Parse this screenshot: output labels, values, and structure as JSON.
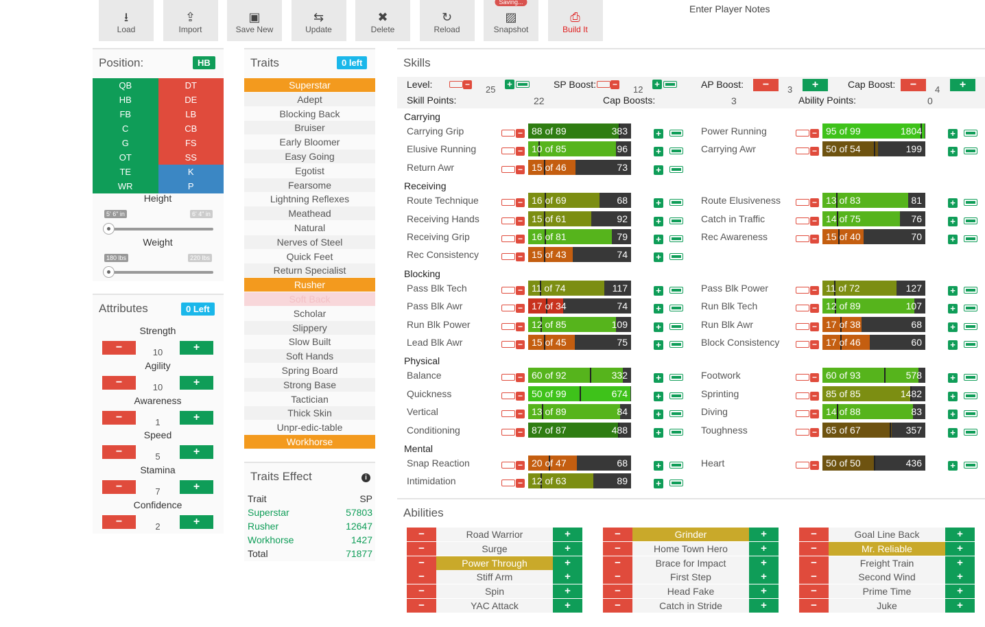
{
  "toolbar": {
    "buttons": [
      {
        "label": "Load",
        "icon": "download-icon"
      },
      {
        "label": "Import",
        "icon": "share-icon"
      },
      {
        "label": "Save New",
        "icon": "save-icon"
      },
      {
        "label": "Update",
        "icon": "sync-icon"
      },
      {
        "label": "Delete",
        "icon": "close-icon"
      },
      {
        "label": "Reload",
        "icon": "reload-icon"
      },
      {
        "label": "Snapshot",
        "icon": "image-icon",
        "badge": "Saving..."
      },
      {
        "label": "Build It",
        "icon": "printer-icon"
      }
    ]
  },
  "notes": {
    "label": "Enter Player Notes"
  },
  "position": {
    "title": "Position:",
    "selected": "HB",
    "rows": [
      [
        "QB",
        "DT"
      ],
      [
        "HB",
        "DE"
      ],
      [
        "FB",
        "LB"
      ],
      [
        "C",
        "CB"
      ],
      [
        "G",
        "FS"
      ],
      [
        "OT",
        "SS"
      ],
      [
        "TE",
        "K"
      ],
      [
        "WR",
        "P"
      ]
    ],
    "height": {
      "label": "Height",
      "min": "5' 6\" in",
      "max": "6' 4\" in"
    },
    "weight": {
      "label": "Weight",
      "min": "180 lbs",
      "max": "220 lbs"
    }
  },
  "attributes": {
    "title": "Attributes",
    "left": "0 Left",
    "items": [
      {
        "name": "Strength",
        "value": "10"
      },
      {
        "name": "Agility",
        "value": "10"
      },
      {
        "name": "Awareness",
        "value": "1"
      },
      {
        "name": "Speed",
        "value": "5"
      },
      {
        "name": "Stamina",
        "value": "7"
      },
      {
        "name": "Confidence",
        "value": "2"
      }
    ]
  },
  "traits": {
    "title": "Traits",
    "left": "0 left",
    "items": [
      {
        "name": "Superstar",
        "state": "on"
      },
      {
        "name": "Adept",
        "state": "off"
      },
      {
        "name": "Blocking Back",
        "state": "off"
      },
      {
        "name": "Bruiser",
        "state": "off"
      },
      {
        "name": "Early Bloomer",
        "state": "off"
      },
      {
        "name": "Easy Going",
        "state": "off"
      },
      {
        "name": "Egotist",
        "state": "off"
      },
      {
        "name": "Fearsome",
        "state": "off"
      },
      {
        "name": "Lightning Reflexes",
        "state": "off"
      },
      {
        "name": "Meathead",
        "state": "off"
      },
      {
        "name": "Natural",
        "state": "off"
      },
      {
        "name": "Nerves of Steel",
        "state": "off"
      },
      {
        "name": "Quick Feet",
        "state": "off"
      },
      {
        "name": "Return Specialist",
        "state": "off"
      },
      {
        "name": "Rusher",
        "state": "on"
      },
      {
        "name": "Soft Back",
        "state": "disabled"
      },
      {
        "name": "Scholar",
        "state": "off"
      },
      {
        "name": "Slippery",
        "state": "off"
      },
      {
        "name": "Slow Built",
        "state": "off"
      },
      {
        "name": "Soft Hands",
        "state": "off"
      },
      {
        "name": "Spring Board",
        "state": "off"
      },
      {
        "name": "Strong Base",
        "state": "off"
      },
      {
        "name": "Tactician",
        "state": "off"
      },
      {
        "name": "Thick Skin",
        "state": "off"
      },
      {
        "name": "Unpr-edic-table",
        "state": "off"
      },
      {
        "name": "Workhorse",
        "state": "on"
      }
    ]
  },
  "traits_effect": {
    "title": "Traits Effect",
    "col_trait": "Trait",
    "col_sp": "SP",
    "rows": [
      {
        "t": "Superstar",
        "sp": "57803"
      },
      {
        "t": "Rusher",
        "sp": "12647"
      },
      {
        "t": "Workhorse",
        "sp": "1427"
      }
    ],
    "total_label": "Total",
    "total": "71877"
  },
  "skills": {
    "title": "Skills",
    "level": {
      "label": "Level:",
      "value": "25"
    },
    "sp_boost": {
      "label": "SP Boost:",
      "value": "12"
    },
    "ap_boost": {
      "label": "AP Boost:",
      "value": "3"
    },
    "cap_boost": {
      "label": "Cap Boost:",
      "value": "4"
    },
    "skill_points": {
      "label": "Skill Points:",
      "value": "22"
    },
    "cap_boosts": {
      "label": "Cap Boosts:",
      "value": "3"
    },
    "ability_points": {
      "label": "Ability Points:",
      "value": "0"
    },
    "categories": [
      {
        "name": "Carrying",
        "rows": [
          [
            {
              "n": "Carrying Grip",
              "cur": 88,
              "max": 89,
              "v": "383",
              "c": "dg"
            },
            {
              "n": "Power Running",
              "cur": 95,
              "max": 99,
              "v": "1804",
              "c": "bg"
            }
          ],
          [
            {
              "n": "Elusive Running",
              "cur": 10,
              "max": 85,
              "v": "96",
              "c": "lg"
            },
            {
              "n": "Carrying Awr",
              "cur": 50,
              "max": 54,
              "v": "199",
              "c": "br"
            }
          ],
          [
            {
              "n": "Return Awr",
              "cur": 15,
              "max": 46,
              "v": "73",
              "c": "or"
            }
          ]
        ]
      },
      {
        "name": "Receiving",
        "rows": [
          [
            {
              "n": "Route Technique",
              "cur": 16,
              "max": 69,
              "v": "68",
              "c": "ol"
            },
            {
              "n": "Route Elusiveness",
              "cur": 13,
              "max": 83,
              "v": "81",
              "c": "lg"
            }
          ],
          [
            {
              "n": "Receiving Hands",
              "cur": 15,
              "max": 61,
              "v": "92",
              "c": "ol"
            },
            {
              "n": "Catch in Traffic",
              "cur": 14,
              "max": 75,
              "v": "76",
              "c": "lg"
            }
          ],
          [
            {
              "n": "Receiving Grip",
              "cur": 16,
              "max": 81,
              "v": "79",
              "c": "lg"
            },
            {
              "n": "Rec Awareness",
              "cur": 15,
              "max": 40,
              "v": "70",
              "c": "or"
            }
          ],
          [
            {
              "n": "Rec Consistency",
              "cur": 15,
              "max": 43,
              "v": "74",
              "c": "or"
            }
          ]
        ]
      },
      {
        "name": "Blocking",
        "rows": [
          [
            {
              "n": "Pass Blk Tech",
              "cur": 11,
              "max": 74,
              "v": "117",
              "c": "ol"
            },
            {
              "n": "Pass Blk Power",
              "cur": 11,
              "max": 72,
              "v": "127",
              "c": "ol"
            }
          ],
          [
            {
              "n": "Pass Blk Awr",
              "cur": 17,
              "max": 34,
              "v": "74",
              "c": "rd"
            },
            {
              "n": "Run Blk Tech",
              "cur": 12,
              "max": 89,
              "v": "107",
              "c": "lg"
            }
          ],
          [
            {
              "n": "Run Blk Power",
              "cur": 12,
              "max": 85,
              "v": "109",
              "c": "lg"
            },
            {
              "n": "Run Blk Awr",
              "cur": 17,
              "max": 38,
              "v": "68",
              "c": "or"
            }
          ],
          [
            {
              "n": "Lead Blk Awr",
              "cur": 15,
              "max": 45,
              "v": "75",
              "c": "or"
            },
            {
              "n": "Block Consistency",
              "cur": 17,
              "max": 46,
              "v": "60",
              "c": "or"
            }
          ]
        ]
      },
      {
        "name": "Physical",
        "rows": [
          [
            {
              "n": "Balance",
              "cur": 60,
              "max": 92,
              "v": "332",
              "c": "lg"
            },
            {
              "n": "Footwork",
              "cur": 60,
              "max": 93,
              "v": "578",
              "c": "lg"
            }
          ],
          [
            {
              "n": "Quickness",
              "cur": 50,
              "max": 99,
              "v": "674",
              "c": "bg"
            },
            {
              "n": "Sprinting",
              "cur": 85,
              "max": 85,
              "v": "1482",
              "c": "ol"
            }
          ],
          [
            {
              "n": "Vertical",
              "cur": 13,
              "max": 89,
              "v": "84",
              "c": "lg"
            },
            {
              "n": "Diving",
              "cur": 14,
              "max": 88,
              "v": "83",
              "c": "lg"
            }
          ],
          [
            {
              "n": "Conditioning",
              "cur": 87,
              "max": 87,
              "v": "488",
              "c": "dg"
            },
            {
              "n": "Toughness",
              "cur": 65,
              "max": 67,
              "v": "357",
              "c": "br"
            }
          ]
        ]
      },
      {
        "name": "Mental",
        "rows": [
          [
            {
              "n": "Snap Reaction",
              "cur": 20,
              "max": 47,
              "v": "68",
              "c": "or"
            },
            {
              "n": "Heart",
              "cur": 50,
              "max": 50,
              "v": "436",
              "c": "br"
            }
          ],
          [
            {
              "n": "Intimidation",
              "cur": 12,
              "max": 63,
              "v": "89",
              "c": "ol"
            }
          ]
        ]
      }
    ]
  },
  "abilities": {
    "title": "Abilities",
    "columns": [
      [
        {
          "n": "Road Warrior"
        },
        {
          "n": "Surge"
        },
        {
          "n": "Power Through",
          "on": true
        },
        {
          "n": "Stiff Arm"
        },
        {
          "n": "Spin"
        },
        {
          "n": "YAC Attack"
        }
      ],
      [
        {
          "n": "Grinder",
          "on": true
        },
        {
          "n": "Home Town Hero"
        },
        {
          "n": "Brace for Impact"
        },
        {
          "n": "First Step"
        },
        {
          "n": "Head Fake"
        },
        {
          "n": "Catch in Stride"
        }
      ],
      [
        {
          "n": "Goal Line Back"
        },
        {
          "n": "Mr. Reliable",
          "on": true
        },
        {
          "n": "Freight Train"
        },
        {
          "n": "Second Wind"
        },
        {
          "n": "Prime Time"
        },
        {
          "n": "Juke"
        }
      ]
    ]
  },
  "colors": {
    "green": "#0f9d58",
    "red": "#e04b3c",
    "blue": "#3b87c4",
    "orange": "#f39a1e",
    "cyan": "#1ab7ea",
    "gold": "#c9a92a"
  }
}
